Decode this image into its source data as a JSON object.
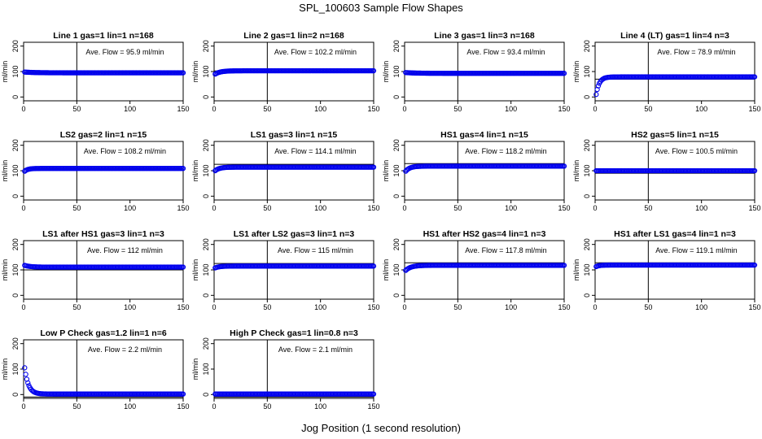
{
  "figure": {
    "title": "SPL_100603  Sample Flow Shapes",
    "xlabel": "Jog Position (1 second resolution)",
    "ylabel": "ml/min",
    "point_color": "#0000ee",
    "axis_color": "#000000"
  },
  "chart_data": [
    {
      "type": "scatter",
      "title": "Line 1 gas=1 lin=1 n=168",
      "annotation": "Ave. Flow = 95.9  ml/min",
      "xlabel": "",
      "ylabel": "ml/min",
      "xlim": [
        0,
        150
      ],
      "ylim": [
        -15,
        215
      ],
      "xticks": [
        0,
        50,
        100,
        150
      ],
      "yticks": [
        0,
        100,
        200
      ],
      "vline": 50,
      "hline": 95.9,
      "mean": 95.9,
      "profile": {
        "start": 98,
        "end": 95,
        "tau": 10
      }
    },
    {
      "type": "scatter",
      "title": "Line 2 gas=1 lin=2 n=168",
      "annotation": "Ave. Flow = 102.2  ml/min",
      "xlabel": "",
      "ylabel": "ml/min",
      "xlim": [
        0,
        150
      ],
      "ylim": [
        -15,
        215
      ],
      "xticks": [
        0,
        50,
        100,
        150
      ],
      "yticks": [
        0,
        100,
        200
      ],
      "vline": 50,
      "hline": 102.2,
      "mean": 102.2,
      "profile": {
        "start": 90,
        "end": 103,
        "tau": 5
      }
    },
    {
      "type": "scatter",
      "title": "Line 3 gas=1 lin=3 n=168",
      "annotation": "Ave. Flow = 93.4  ml/min",
      "xlabel": "",
      "ylabel": "ml/min",
      "xlim": [
        0,
        150
      ],
      "ylim": [
        -15,
        215
      ],
      "xticks": [
        0,
        50,
        100,
        150
      ],
      "yticks": [
        0,
        100,
        200
      ],
      "vline": 50,
      "hline": 93.4,
      "mean": 93.4,
      "profile": {
        "start": 96,
        "end": 93,
        "tau": 10
      }
    },
    {
      "type": "scatter",
      "title": "Line 4 (LT) gas=1 lin=4 n=3",
      "annotation": "Ave. Flow = 78.9  ml/min",
      "xlabel": "",
      "ylabel": "ml/min",
      "xlim": [
        0,
        150
      ],
      "ylim": [
        -15,
        215
      ],
      "xticks": [
        0,
        50,
        100,
        150
      ],
      "yticks": [
        0,
        100,
        200
      ],
      "vline": 50,
      "hline": 70,
      "mean": 78.9,
      "profile": {
        "start": 10,
        "end": 79,
        "tau": 3
      }
    },
    {
      "type": "scatter",
      "title": "LS2 gas=2 lin=1 n=15",
      "annotation": "Ave. Flow = 108.2  ml/min",
      "xlabel": "",
      "ylabel": "ml/min",
      "xlim": [
        0,
        150
      ],
      "ylim": [
        -15,
        215
      ],
      "xticks": [
        0,
        50,
        100,
        150
      ],
      "yticks": [
        0,
        100,
        200
      ],
      "vline": 50,
      "hline": 108.2,
      "mean": 108.2,
      "profile": {
        "start": 98,
        "end": 109,
        "tau": 3
      }
    },
    {
      "type": "scatter",
      "title": "LS1 gas=3 lin=1 n=15",
      "annotation": "Ave. Flow = 114.1  ml/min",
      "xlabel": "",
      "ylabel": "ml/min",
      "xlim": [
        0,
        150
      ],
      "ylim": [
        -15,
        215
      ],
      "xticks": [
        0,
        50,
        100,
        150
      ],
      "yticks": [
        0,
        100,
        200
      ],
      "vline": 50,
      "hline": 125,
      "mean": 114.1,
      "profile": {
        "start": 100,
        "end": 114,
        "tau": 4
      }
    },
    {
      "type": "scatter",
      "title": "HS1 gas=4 lin=1 n=15",
      "annotation": "Ave. Flow = 118.2  ml/min",
      "xlabel": "",
      "ylabel": "ml/min",
      "xlim": [
        0,
        150
      ],
      "ylim": [
        -15,
        215
      ],
      "xticks": [
        0,
        50,
        100,
        150
      ],
      "yticks": [
        0,
        100,
        200
      ],
      "vline": 50,
      "hline": 128,
      "mean": 118.2,
      "profile": {
        "start": 98,
        "end": 118,
        "tau": 4
      }
    },
    {
      "type": "scatter",
      "title": "HS2 gas=5 lin=1 n=15",
      "annotation": "Ave. Flow = 100.5  ml/min",
      "xlabel": "",
      "ylabel": "ml/min",
      "xlim": [
        0,
        150
      ],
      "ylim": [
        -15,
        215
      ],
      "xticks": [
        0,
        50,
        100,
        150
      ],
      "yticks": [
        0,
        100,
        200
      ],
      "vline": 50,
      "hline": 90,
      "mean": 100.5,
      "profile": {
        "start": 100,
        "end": 100,
        "tau": 3
      }
    },
    {
      "type": "scatter",
      "title": "LS1 after HS1 gas=3 lin=1 n=3",
      "annotation": "Ave. Flow = 112  ml/min",
      "xlabel": "",
      "ylabel": "ml/min",
      "xlim": [
        0,
        150
      ],
      "ylim": [
        -15,
        215
      ],
      "xticks": [
        0,
        50,
        100,
        150
      ],
      "yticks": [
        0,
        100,
        200
      ],
      "vline": 50,
      "hline": 100,
      "mean": 112,
      "profile": {
        "start": 118,
        "end": 111,
        "tau": 5
      }
    },
    {
      "type": "scatter",
      "title": "LS1 after LS2 gas=3 lin=1 n=3",
      "annotation": "Ave. Flow = 115  ml/min",
      "xlabel": "",
      "ylabel": "ml/min",
      "xlim": [
        0,
        150
      ],
      "ylim": [
        -15,
        215
      ],
      "xticks": [
        0,
        50,
        100,
        150
      ],
      "yticks": [
        0,
        100,
        200
      ],
      "vline": 50,
      "hline": 125,
      "mean": 115,
      "profile": {
        "start": 108,
        "end": 115,
        "tau": 4
      }
    },
    {
      "type": "scatter",
      "title": "HS1 after HS2 gas=4 lin=1 n=3",
      "annotation": "Ave. Flow = 117.8  ml/min",
      "xlabel": "",
      "ylabel": "ml/min",
      "xlim": [
        0,
        150
      ],
      "ylim": [
        -15,
        215
      ],
      "xticks": [
        0,
        50,
        100,
        150
      ],
      "yticks": [
        0,
        100,
        200
      ],
      "vline": 50,
      "hline": 128,
      "mean": 117.8,
      "profile": {
        "start": 98,
        "end": 118,
        "tau": 5
      }
    },
    {
      "type": "scatter",
      "title": "HS1 after LS1 gas=4 lin=1 n=3",
      "annotation": "Ave. Flow = 119.1  ml/min",
      "xlabel": "",
      "ylabel": "ml/min",
      "xlim": [
        0,
        150
      ],
      "ylim": [
        -15,
        215
      ],
      "xticks": [
        0,
        50,
        100,
        150
      ],
      "yticks": [
        0,
        100,
        200
      ],
      "vline": 50,
      "hline": 128,
      "mean": 119.1,
      "profile": {
        "start": 113,
        "end": 119,
        "tau": 3
      }
    },
    {
      "type": "scatter",
      "title": "Low P Check gas=1.2 lin=1 n=6",
      "annotation": "Ave. Flow = 2.2  ml/min",
      "xlabel": "",
      "ylabel": "ml/min",
      "xlim": [
        0,
        150
      ],
      "ylim": [
        -15,
        215
      ],
      "xticks": [
        0,
        50,
        100,
        150
      ],
      "yticks": [
        0,
        100,
        200
      ],
      "vline": 50,
      "hline": -10,
      "mean": 2.2,
      "profile": {
        "start": 105,
        "end": 2,
        "tau": 3.5
      }
    },
    {
      "type": "scatter",
      "title": "High P Check gas=1 lin=0.8 n=3",
      "annotation": "Ave. Flow = 2.1  ml/min",
      "xlabel": "",
      "ylabel": "ml/min",
      "xlim": [
        0,
        150
      ],
      "ylim": [
        -15,
        215
      ],
      "xticks": [
        0,
        50,
        100,
        150
      ],
      "yticks": [
        0,
        100,
        200
      ],
      "vline": 50,
      "hline": -10,
      "mean": 2.1,
      "profile": {
        "start": 2,
        "end": 2,
        "tau": 3
      }
    }
  ]
}
